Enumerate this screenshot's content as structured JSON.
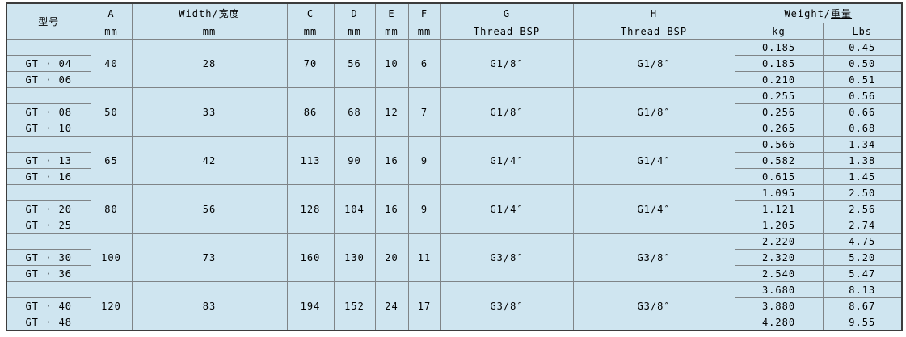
{
  "page": {
    "background": "#ffffff"
  },
  "table": {
    "style": {
      "cell_bg": "#cfe5f0",
      "grid_color": "#7f8487",
      "outer_border": "#3c3c3c",
      "text_color": "#000000"
    },
    "header": {
      "model": "型号",
      "columns": [
        {
          "label": "A",
          "sub": "mm"
        },
        {
          "label": "Width/宽度",
          "sub": "mm"
        },
        {
          "label": "C",
          "sub": "mm"
        },
        {
          "label": "D",
          "sub": "mm"
        },
        {
          "label": "E",
          "sub": "mm"
        },
        {
          "label": "F",
          "sub": "mm"
        },
        {
          "label": "G",
          "sub": "Thread BSP"
        },
        {
          "label": "H",
          "sub": "Thread BSP"
        }
      ],
      "weight": {
        "label_en": "Weight/",
        "label_cn": "重量",
        "sub_kg": "kg",
        "sub_lbs": "Lbs"
      }
    },
    "groups": [
      {
        "models": [
          "",
          "GT · 04",
          "GT · 06"
        ],
        "A": "40",
        "width": "28",
        "C": "70",
        "D": "56",
        "E": "10",
        "F": "6",
        "G": "G1/8″",
        "H": "G1/8″",
        "weights": [
          [
            "0.185",
            "0.45"
          ],
          [
            "0.185",
            "0.50"
          ],
          [
            "0.210",
            "0.51"
          ]
        ]
      },
      {
        "models": [
          "",
          "GT · 08",
          "GT · 10"
        ],
        "A": "50",
        "width": "33",
        "C": "86",
        "D": "68",
        "E": "12",
        "F": "7",
        "G": "G1/8″",
        "H": "G1/8″",
        "weights": [
          [
            "0.255",
            "0.56"
          ],
          [
            "0.256",
            "0.66"
          ],
          [
            "0.265",
            "0.68"
          ]
        ]
      },
      {
        "models": [
          "",
          "GT · 13",
          "GT · 16"
        ],
        "A": "65",
        "width": "42",
        "C": "113",
        "D": "90",
        "E": "16",
        "F": "9",
        "G": "G1/4″",
        "H": "G1/4″",
        "weights": [
          [
            "0.566",
            "1.34"
          ],
          [
            "0.582",
            "1.38"
          ],
          [
            "0.615",
            "1.45"
          ]
        ]
      },
      {
        "models": [
          "",
          "GT · 20",
          "GT · 25"
        ],
        "A": "80",
        "width": "56",
        "C": "128",
        "D": "104",
        "E": "16",
        "F": "9",
        "G": "G1/4″",
        "H": "G1/4″",
        "weights": [
          [
            "1.095",
            "2.50"
          ],
          [
            "1.121",
            "2.56"
          ],
          [
            "1.205",
            "2.74"
          ]
        ]
      },
      {
        "models": [
          "",
          "GT · 30",
          "GT · 36"
        ],
        "A": "100",
        "width": "73",
        "C": "160",
        "D": "130",
        "E": "20",
        "F": "11",
        "G": "G3/8″",
        "H": "G3/8″",
        "weights": [
          [
            "2.220",
            "4.75"
          ],
          [
            "2.320",
            "5.20"
          ],
          [
            "2.540",
            "5.47"
          ]
        ]
      },
      {
        "models": [
          "",
          "GT · 40",
          "GT · 48"
        ],
        "A": "120",
        "width": "83",
        "C": "194",
        "D": "152",
        "E": "24",
        "F": "17",
        "G": "G3/8″",
        "H": "G3/8″",
        "weights": [
          [
            "3.680",
            "8.13"
          ],
          [
            "3.880",
            "8.67"
          ],
          [
            "4.280",
            "9.55"
          ]
        ]
      }
    ]
  }
}
